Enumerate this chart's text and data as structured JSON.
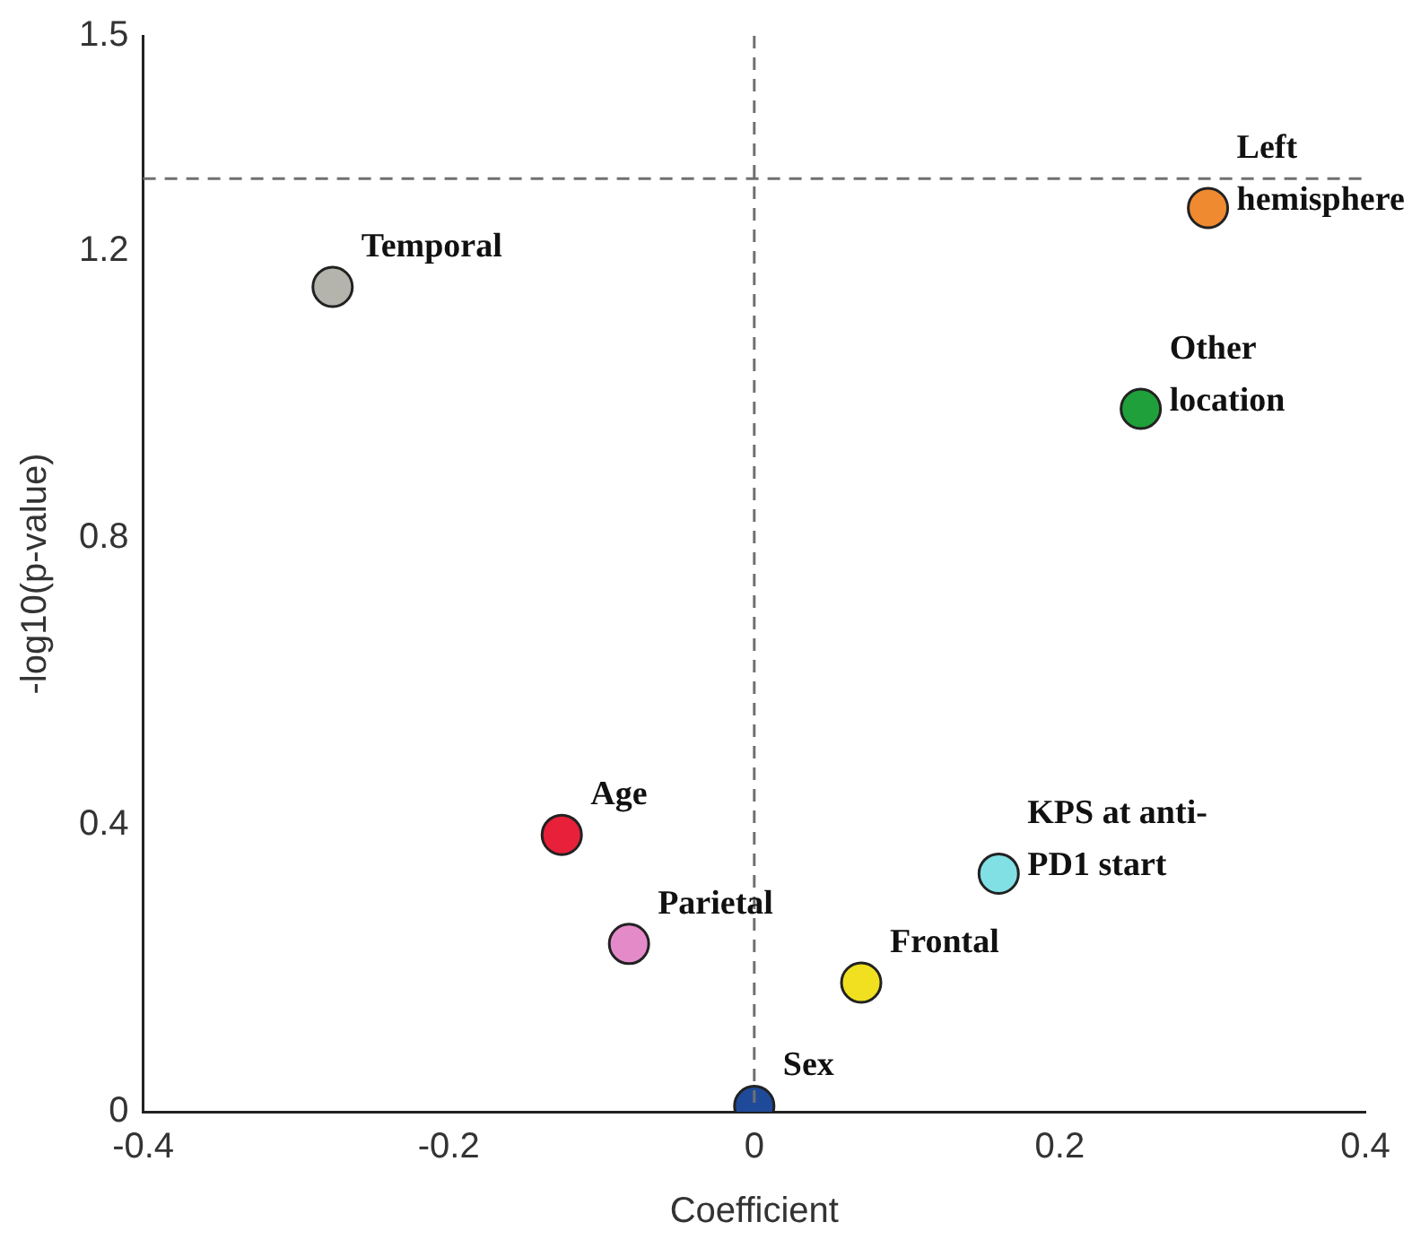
{
  "chart_data": {
    "type": "scatter",
    "xlabel": "Coefficient",
    "ylabel": "-log10(p-value)",
    "x": [
      -0.276,
      0.297,
      0.253,
      -0.126,
      -0.082,
      0.16,
      0.07,
      0
    ],
    "values": [
      1.15,
      1.26,
      0.98,
      0.386,
      0.234,
      0.332,
      0.18,
      0.008
    ],
    "colors": [
      "#b4b4ac",
      "#f08a30",
      "#1fa03a",
      "#e8203a",
      "#e58ac8",
      "#80e0e4",
      "#f0e020",
      "#1f4a9a"
    ],
    "xlim": [
      -0.4,
      0.4
    ],
    "xticks": [
      -0.4,
      -0.2,
      0,
      0.2,
      0.4
    ],
    "ylim": [
      0,
      1.5
    ],
    "yticks": [
      0,
      0.4,
      0.8,
      1.2,
      1.5
    ],
    "grid": false,
    "legend": false,
    "marker": "circle",
    "ref_lines": [
      {
        "axis": "x",
        "value": 0,
        "line_style": "dashed",
        "color": "#707070"
      },
      {
        "axis": "y",
        "value": 1.301,
        "line_style": "dashed",
        "color": "#707070"
      }
    ],
    "annotations": [
      {
        "text": "Temporal",
        "x": -0.276,
        "y": 1.15
      },
      {
        "text": "Left\nhemisphere",
        "x": 0.297,
        "y": 1.26
      },
      {
        "text": "Other\nlocation",
        "x": 0.253,
        "y": 0.98
      },
      {
        "text": "Age",
        "x": -0.126,
        "y": 0.386
      },
      {
        "text": "Parietal",
        "x": -0.082,
        "y": 0.234
      },
      {
        "text": "KPS at anti-\nPD1 start",
        "x": 0.16,
        "y": 0.332
      },
      {
        "text": "Frontal",
        "x": 0.07,
        "y": 0.18
      },
      {
        "text": "Sex",
        "x": 0,
        "y": 0.008
      }
    ]
  }
}
